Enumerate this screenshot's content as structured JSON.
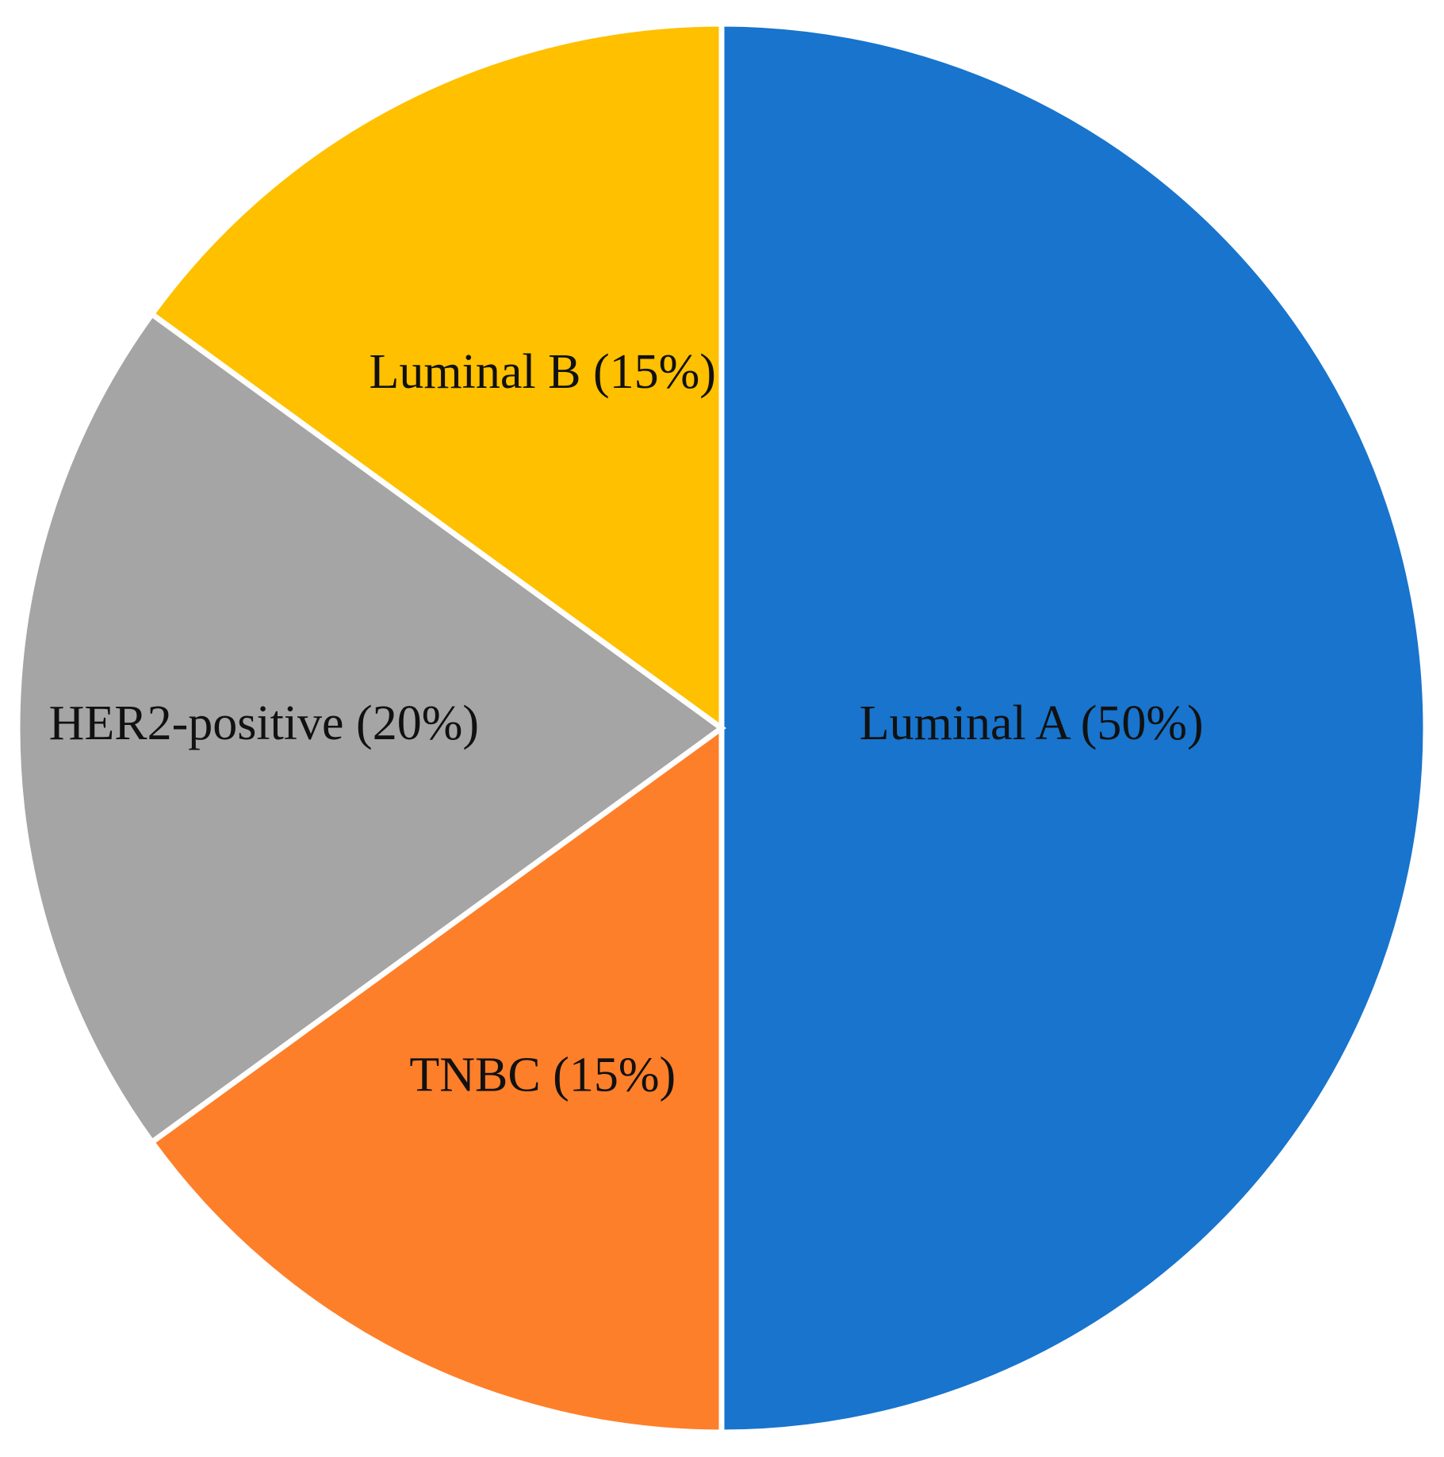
{
  "chart_data": {
    "type": "pie",
    "start_angle_deg": 0,
    "direction": "clockwise",
    "slices": [
      {
        "label": "Luminal A (50%)",
        "value": 50,
        "color": "#1874CD"
      },
      {
        "label": "TNBC (15%)",
        "value": 15,
        "color": "#FE7F2A"
      },
      {
        "label": "HER2-positive (20%)",
        "value": 20,
        "color": "#A5A5A5"
      },
      {
        "label": "Luminal B (15%)",
        "value": 15,
        "color": "#FFC000"
      }
    ]
  }
}
